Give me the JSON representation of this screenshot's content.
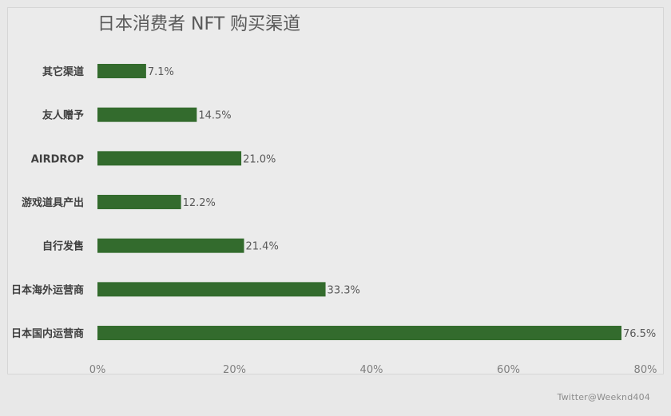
{
  "chart_data": {
    "type": "bar",
    "orientation": "horizontal",
    "title": "日本消费者 NFT 购买渠道",
    "categories": [
      "其它渠道",
      "友人赠予",
      "AIRDROP",
      "游戏道具产出",
      "自行发售",
      "日本海外运营商",
      "日本国内运营商"
    ],
    "values": [
      7.1,
      14.5,
      21.0,
      12.2,
      21.4,
      33.3,
      76.5
    ],
    "value_labels": [
      "7.1%",
      "14.5%",
      "21.0%",
      "12.2%",
      "21.4%",
      "33.3%",
      "76.5%"
    ],
    "xlim": [
      0,
      80
    ],
    "x_ticks": [
      0,
      20,
      40,
      60,
      80
    ],
    "x_tick_labels": [
      "0%",
      "20%",
      "40%",
      "60%",
      "80%"
    ],
    "xlabel": "",
    "ylabel": "",
    "grid": false,
    "legend": "none",
    "bar_color": "#336b2d"
  },
  "watermark": "Twitter@Weeknd404"
}
